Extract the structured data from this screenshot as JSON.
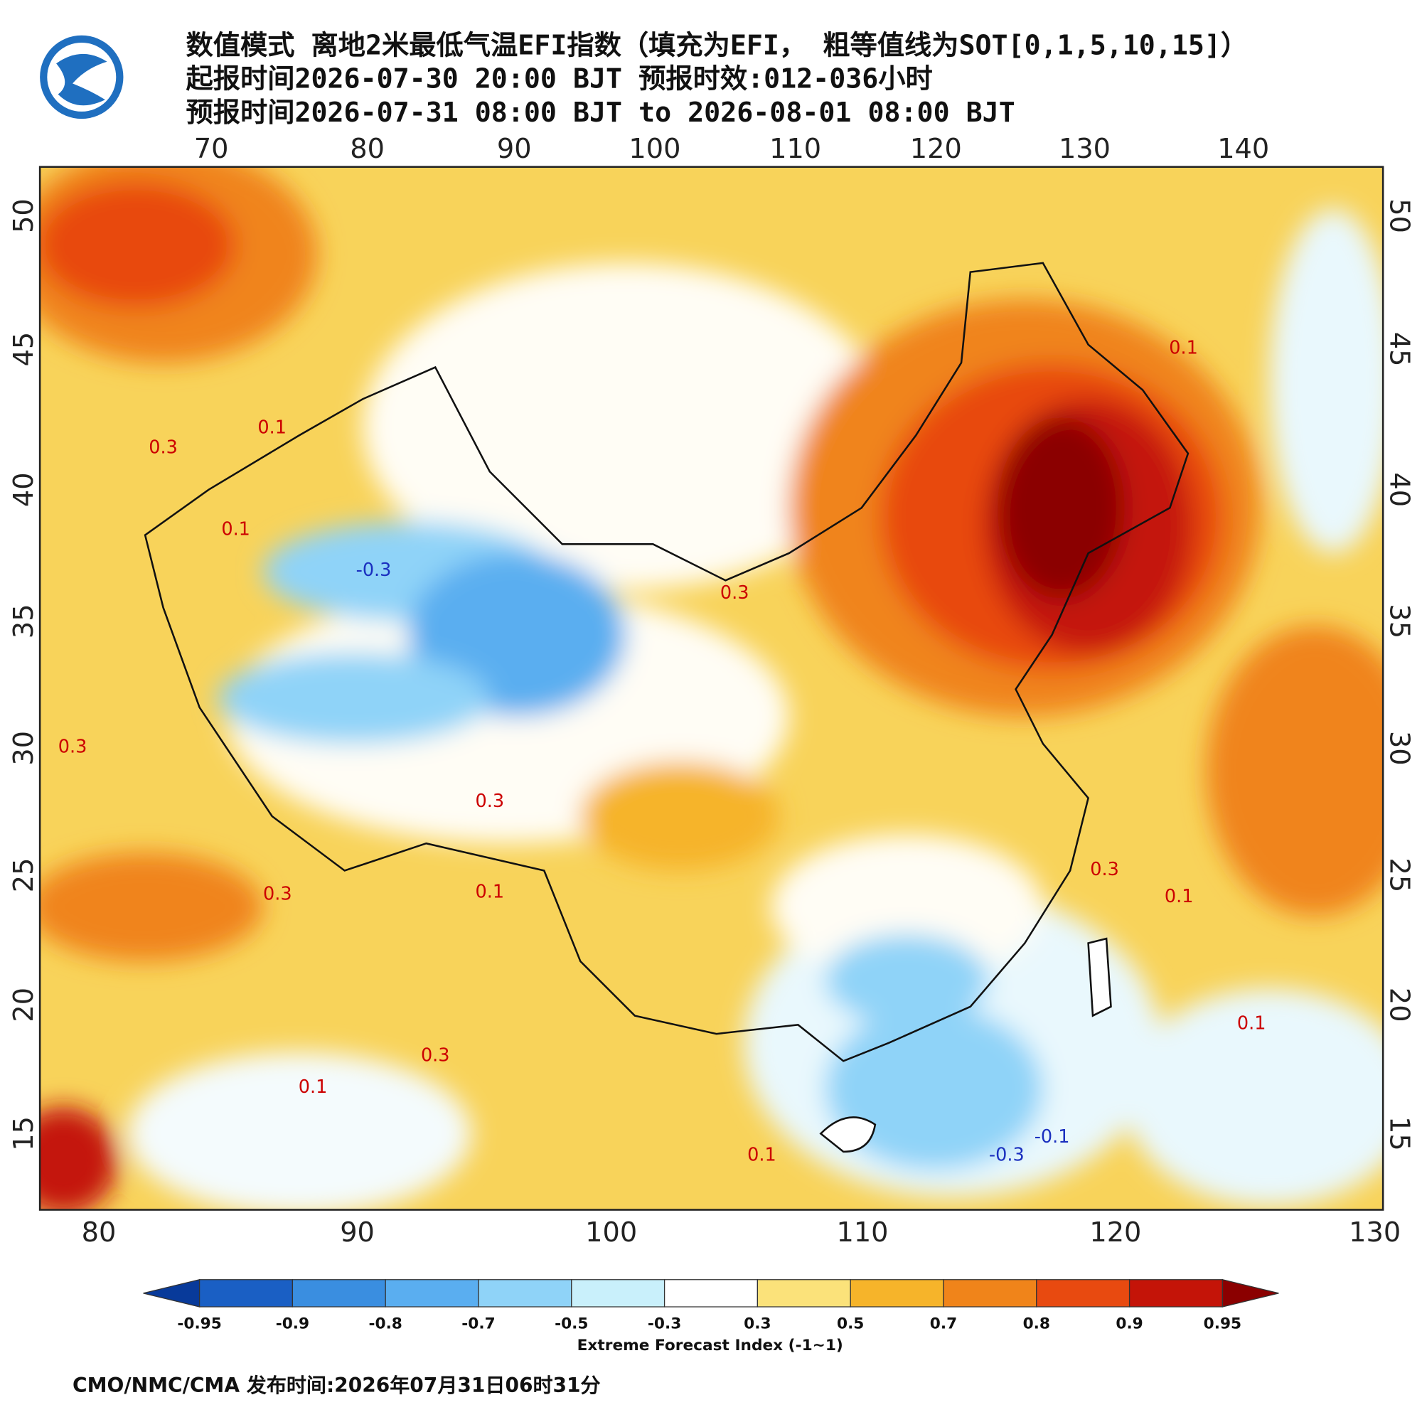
{
  "header": {
    "lines": [
      "数值模式 离地2米最低气温EFI指数（填充为EFI， 粗等值线为SOT[0,1,5,10,15]）",
      "起报时间2026-07-30 20:00 BJT 预报时效:012-036小时",
      "预报时间2026-07-31 08:00 BJT to 2026-08-01 08:00 BJT"
    ]
  },
  "map": {
    "top_lon_ticks": [
      70,
      80,
      90,
      100,
      110,
      120,
      130,
      140
    ],
    "bottom_lon_ticks": [
      80,
      90,
      100,
      110,
      120,
      130
    ],
    "left_lat_ticks": [
      50,
      45,
      40,
      35,
      30,
      25,
      20,
      15
    ],
    "right_lat_ticks": [
      50,
      45,
      40,
      35,
      30,
      25,
      20,
      15
    ],
    "contour_labels": [
      "0.1",
      "0.3",
      "0.1",
      "-0.3",
      "0.3",
      "0.3",
      "0.1",
      "0.3",
      "0.1",
      "0.3",
      "0.1",
      "0.3",
      "0.1",
      "-0.3",
      "-0.1",
      "0.1",
      "0.3",
      "0.1"
    ]
  },
  "colorbar": {
    "ticks": [
      -0.95,
      -0.9,
      -0.8,
      -0.7,
      -0.5,
      -0.3,
      0.3,
      0.5,
      0.7,
      0.8,
      0.9,
      0.95
    ],
    "colors": [
      "#083a9a",
      "#1a5fc4",
      "#3a8ee0",
      "#5aaef0",
      "#8fd3f8",
      "#c9f0fb",
      "#ffffff",
      "#fbe27a",
      "#f6b42a",
      "#f0841a",
      "#e84a10",
      "#c41408",
      "#8b0000"
    ],
    "title": "Extreme Forecast Index (-1~1)"
  },
  "footer": "CMO/NMC/CMA 发布时间:2026年07月31日06时31分"
}
